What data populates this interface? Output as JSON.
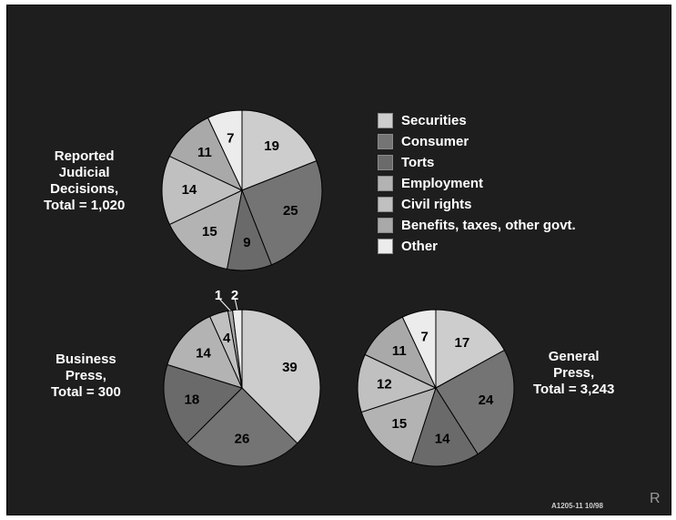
{
  "legend": {
    "items": [
      {
        "label": "Securities",
        "color": "#cdcdcd"
      },
      {
        "label": "Consumer",
        "color": "#747474"
      },
      {
        "label": "Torts",
        "color": "#6a6a6a"
      },
      {
        "label": "Employment",
        "color": "#b3b3b3"
      },
      {
        "label": "Civil rights",
        "color": "#c0c0c0"
      },
      {
        "label": "Benefits, taxes, other govt.",
        "color": "#a9a9a9"
      },
      {
        "label": "Other",
        "color": "#ececec"
      }
    ]
  },
  "chart_data": [
    {
      "type": "pie",
      "title": [
        "Reported",
        "Judicial",
        "Decisions,",
        "Total = 1,020"
      ],
      "categories": [
        "Securities",
        "Consumer",
        "Torts",
        "Employment",
        "Civil rights",
        "Benefits, taxes, other govt.",
        "Other"
      ],
      "values": [
        19,
        25,
        9,
        15,
        14,
        11,
        7
      ]
    },
    {
      "type": "pie",
      "title": [
        "Business",
        "Press,",
        "Total = 300"
      ],
      "categories": [
        "Securities",
        "Consumer",
        "Torts",
        "Employment",
        "Civil rights",
        "Benefits, taxes, other govt.",
        "Other"
      ],
      "values": [
        39,
        26,
        18,
        14,
        4,
        1,
        2
      ]
    },
    {
      "type": "pie",
      "title": [
        "General",
        "Press,",
        "Total = 3,243"
      ],
      "categories": [
        "Securities",
        "Consumer",
        "Torts",
        "Employment",
        "Civil rights",
        "Benefits, taxes, other govt.",
        "Other"
      ],
      "values": [
        17,
        24,
        14,
        15,
        12,
        11,
        7
      ]
    }
  ],
  "footer": {
    "code": "A1205-11  10/98",
    "mark": "R"
  }
}
